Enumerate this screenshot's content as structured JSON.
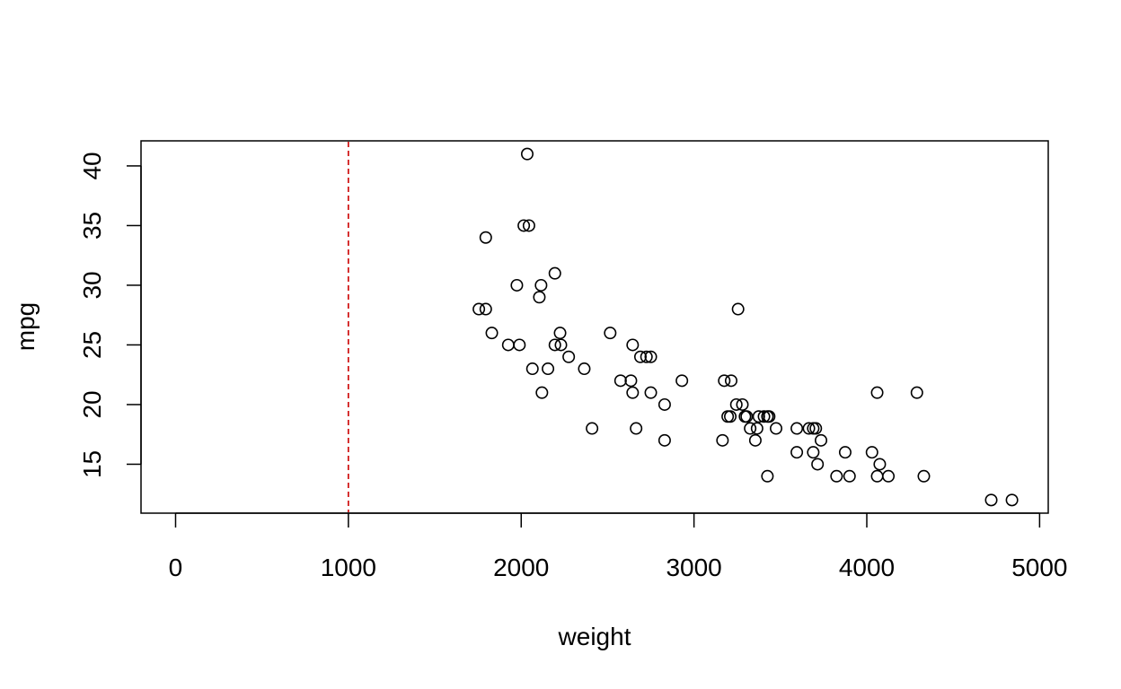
{
  "chart_data": {
    "type": "scatter",
    "title": "",
    "xlabel": "weight",
    "ylabel": "mpg",
    "xlim": [
      -200,
      5050
    ],
    "ylim": [
      10.9,
      42.1
    ],
    "x_ticks": [
      0,
      1000,
      2000,
      3000,
      4000,
      5000
    ],
    "y_ticks": [
      15,
      20,
      25,
      30,
      35,
      40
    ],
    "x_tick_labels": [
      "0",
      "1000",
      "2000",
      "3000",
      "4000",
      "5000"
    ],
    "y_tick_labels": [
      "15",
      "20",
      "25",
      "30",
      "35",
      "40"
    ],
    "grid": false,
    "legend": "none",
    "vline": {
      "x": 1000,
      "color": "#cc0000",
      "style": "dashed"
    },
    "marker_color": "#000000",
    "points": [
      [
        2035,
        41
      ],
      [
        2015,
        35
      ],
      [
        2045,
        35
      ],
      [
        1795,
        34
      ],
      [
        2195,
        31
      ],
      [
        1975,
        30
      ],
      [
        2115,
        30
      ],
      [
        2105,
        29
      ],
      [
        1755,
        28
      ],
      [
        1795,
        28
      ],
      [
        3255,
        28
      ],
      [
        1830,
        26
      ],
      [
        2225,
        26
      ],
      [
        2515,
        26
      ],
      [
        1925,
        25
      ],
      [
        1990,
        25
      ],
      [
        2195,
        25
      ],
      [
        2230,
        25
      ],
      [
        2645,
        25
      ],
      [
        2275,
        24
      ],
      [
        2690,
        24
      ],
      [
        2725,
        24
      ],
      [
        2750,
        24
      ],
      [
        2065,
        23
      ],
      [
        2155,
        23
      ],
      [
        2365,
        23
      ],
      [
        2575,
        22
      ],
      [
        2635,
        22
      ],
      [
        2930,
        22
      ],
      [
        3175,
        22
      ],
      [
        3215,
        22
      ],
      [
        2120,
        21
      ],
      [
        2645,
        21
      ],
      [
        2750,
        21
      ],
      [
        4060,
        21
      ],
      [
        4290,
        21
      ],
      [
        2830,
        20
      ],
      [
        3245,
        20
      ],
      [
        3280,
        20
      ],
      [
        3195,
        19
      ],
      [
        3210,
        19
      ],
      [
        3295,
        19
      ],
      [
        3305,
        19
      ],
      [
        3375,
        19
      ],
      [
        3405,
        19
      ],
      [
        3425,
        19
      ],
      [
        3435,
        19
      ],
      [
        2410,
        18
      ],
      [
        2665,
        18
      ],
      [
        3325,
        18
      ],
      [
        3365,
        18
      ],
      [
        3475,
        18
      ],
      [
        3595,
        18
      ],
      [
        3665,
        18
      ],
      [
        3690,
        18
      ],
      [
        3705,
        18
      ],
      [
        2830,
        17
      ],
      [
        3165,
        17
      ],
      [
        3355,
        17
      ],
      [
        3735,
        17
      ],
      [
        3595,
        16
      ],
      [
        3690,
        16
      ],
      [
        3875,
        16
      ],
      [
        4030,
        16
      ],
      [
        3715,
        15
      ],
      [
        4075,
        15
      ],
      [
        3425,
        14
      ],
      [
        3825,
        14
      ],
      [
        3900,
        14
      ],
      [
        4060,
        14
      ],
      [
        4125,
        14
      ],
      [
        4330,
        14
      ],
      [
        4720,
        12
      ],
      [
        4840,
        12
      ]
    ]
  }
}
